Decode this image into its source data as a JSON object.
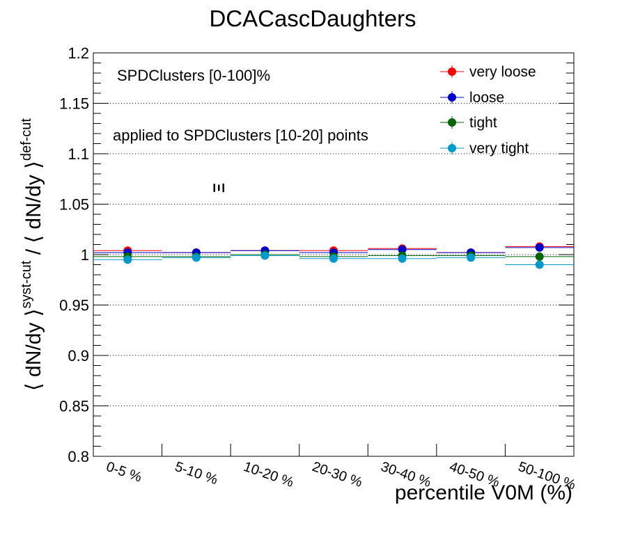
{
  "chart_data": {
    "type": "scatter",
    "title": "DCACascDaughters",
    "xlabel": "percentile V0M (%)",
    "ylabel": {
      "part1": "⟨ dN/dy ⟩",
      "sup1": "syst-cut",
      "sep": " / ",
      "part2": "⟨ dN/dy ⟩",
      "sup2": "def-cut"
    },
    "ylim": [
      0.8,
      1.2
    ],
    "yticks": [
      {
        "value": 0.8,
        "label": "0.8"
      },
      {
        "value": 0.85,
        "label": "0.85"
      },
      {
        "value": 0.9,
        "label": "0.9"
      },
      {
        "value": 0.95,
        "label": "0.95"
      },
      {
        "value": 1.0,
        "label": "1"
      },
      {
        "value": 1.05,
        "label": "1.05"
      },
      {
        "value": 1.1,
        "label": "1.1"
      },
      {
        "value": 1.15,
        "label": "1.15"
      },
      {
        "value": 1.2,
        "label": "1.2"
      }
    ],
    "grid": true,
    "categories": [
      "0-5 %",
      "5-10 %",
      "10-20 %",
      "20-30 %",
      "30-40 %",
      "40-50 %",
      "50-100 %"
    ],
    "series": [
      {
        "name": "very loose",
        "color": "#ff0000",
        "values": [
          1.004,
          1.002,
          1.004,
          1.004,
          1.006,
          1.002,
          1.008
        ]
      },
      {
        "name": "loose",
        "color": "#0000cc",
        "values": [
          1.002,
          1.002,
          1.004,
          1.002,
          1.005,
          1.002,
          1.007
        ]
      },
      {
        "name": "tight",
        "color": "#006600",
        "values": [
          0.998,
          0.998,
          1.0,
          0.998,
          0.999,
          0.999,
          0.998
        ]
      },
      {
        "name": "very tight",
        "color": "#0099cc",
        "values": [
          0.995,
          0.997,
          0.999,
          0.996,
          0.996,
          0.997,
          0.99
        ]
      }
    ],
    "legend_position": "top-right",
    "annotations": [
      {
        "id": "centrality",
        "text": "SPDClusters [0-100]%"
      },
      {
        "id": "applied",
        "text": "applied to SPDClusters [10-20] points"
      },
      {
        "id": "particle",
        "text": "Ξ"
      }
    ]
  }
}
